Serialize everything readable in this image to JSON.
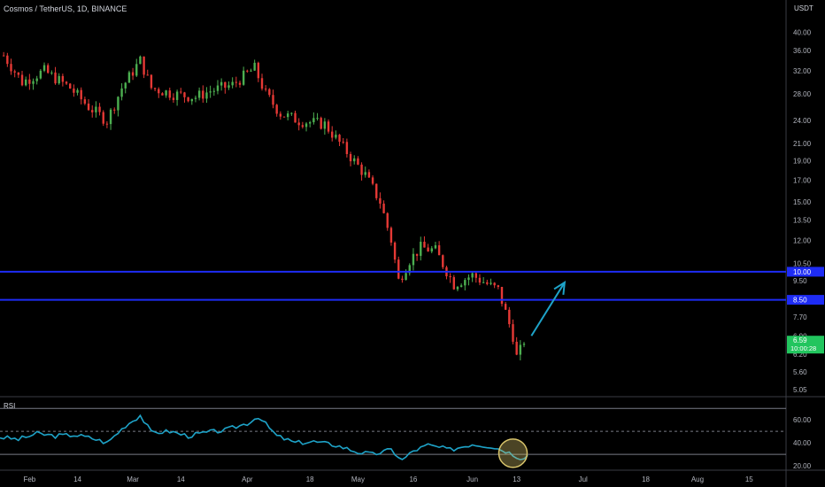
{
  "header": {
    "title": "Cosmos / TetherUS, 1D, BINANCE"
  },
  "price_axis": {
    "currency": "USDT",
    "labels": [
      "40.00",
      "36.00",
      "32.00",
      "28.00",
      "24.00",
      "21.00",
      "19.00",
      "17.00",
      "15.00",
      "13.50",
      "12.00",
      "10.50",
      "9.50",
      "7.70",
      "6.90",
      "6.20",
      "5.60",
      "5.05"
    ]
  },
  "time_axis": {
    "labels": [
      "Feb",
      "14",
      "Mar",
      "14",
      "Apr",
      "18",
      "May",
      "16",
      "Jun",
      "13",
      "Jul",
      "18",
      "Aug",
      "15"
    ]
  },
  "rsi_panel": {
    "label": "RSI",
    "axis_labels": [
      "60.00",
      "40.00",
      "20.00"
    ]
  },
  "badges": {
    "level_upper": "10.00",
    "level_lower": "8.50",
    "last_price": "6.59",
    "countdown": "10:00:28"
  },
  "colors": {
    "background": "#000000",
    "up": "#4caf50",
    "down": "#e53935",
    "level_line": "#1e2cf5",
    "rsi_line": "#1ea3c8",
    "arrow": "#1ea3c8",
    "circle_fill": "#d8c46b",
    "last_price_badge": "#22c55e",
    "axis_text": "#b2b5be"
  },
  "chart_data": [
    {
      "type": "candlestick",
      "title": "Cosmos / TetherUS, 1D, BINANCE",
      "y_scale": "log",
      "ylim": [
        4.9,
        44
      ],
      "y_unit": "USDT",
      "x_range": [
        "2022-01-24",
        "2022-08-25"
      ],
      "grid": false,
      "close_points": [
        [
          "2022-01-25",
          35
        ],
        [
          "2022-01-30",
          30
        ],
        [
          "2022-02-05",
          32
        ],
        [
          "2022-02-12",
          29
        ],
        [
          "2022-02-17",
          26
        ],
        [
          "2022-02-22",
          24
        ],
        [
          "2022-02-26",
          29
        ],
        [
          "2022-03-03",
          34
        ],
        [
          "2022-03-06",
          29
        ],
        [
          "2022-03-12",
          28
        ],
        [
          "2022-03-18",
          27.5
        ],
        [
          "2022-03-22",
          28.5
        ],
        [
          "2022-03-28",
          29.5
        ],
        [
          "2022-04-01",
          31.5
        ],
        [
          "2022-04-03",
          32.5
        ],
        [
          "2022-04-06",
          28
        ],
        [
          "2022-04-10",
          25
        ],
        [
          "2022-04-15",
          24
        ],
        [
          "2022-04-22",
          23.5
        ],
        [
          "2022-04-28",
          20
        ],
        [
          "2022-05-03",
          17.5
        ],
        [
          "2022-05-07",
          15
        ],
        [
          "2022-05-10",
          12
        ],
        [
          "2022-05-12",
          9.5
        ],
        [
          "2022-05-15",
          10.7
        ],
        [
          "2022-05-18",
          11.5
        ],
        [
          "2022-05-22",
          11.3
        ],
        [
          "2022-05-27",
          9.3
        ],
        [
          "2022-06-01",
          9.8
        ],
        [
          "2022-06-06",
          9.2
        ],
        [
          "2022-06-08",
          9.0
        ],
        [
          "2022-06-10",
          7.9
        ],
        [
          "2022-06-12",
          6.9
        ],
        [
          "2022-06-13",
          6.1
        ],
        [
          "2022-06-15",
          6.59
        ]
      ],
      "horizontal_levels": [
        10.0,
        8.5
      ],
      "last_price": 6.59,
      "annotation": {
        "type": "arrow",
        "from": [
          "2022-06-17",
          6.9
        ],
        "to": [
          "2022-06-26",
          9.4
        ]
      }
    },
    {
      "type": "line",
      "title": "RSI",
      "ylim": [
        17,
        74
      ],
      "bands": [
        70,
        50,
        30
      ],
      "series_points": [
        [
          "2022-01-24",
          45
        ],
        [
          "2022-01-29",
          43
        ],
        [
          "2022-02-03",
          48
        ],
        [
          "2022-02-08",
          46
        ],
        [
          "2022-02-13",
          47
        ],
        [
          "2022-02-18",
          44
        ],
        [
          "2022-02-22",
          40
        ],
        [
          "2022-02-27",
          55
        ],
        [
          "2022-03-03",
          64
        ],
        [
          "2022-03-06",
          49
        ],
        [
          "2022-03-11",
          50
        ],
        [
          "2022-03-16",
          46
        ],
        [
          "2022-03-21",
          49
        ],
        [
          "2022-03-26",
          51
        ],
        [
          "2022-04-01",
          57
        ],
        [
          "2022-04-04",
          63
        ],
        [
          "2022-04-09",
          46
        ],
        [
          "2022-04-14",
          40
        ],
        [
          "2022-04-19",
          41
        ],
        [
          "2022-04-25",
          38
        ],
        [
          "2022-05-01",
          32
        ],
        [
          "2022-05-05",
          30
        ],
        [
          "2022-05-10",
          34
        ],
        [
          "2022-05-13",
          25
        ],
        [
          "2022-05-16",
          33
        ],
        [
          "2022-05-20",
          38
        ],
        [
          "2022-05-26",
          34
        ],
        [
          "2022-06-01",
          39
        ],
        [
          "2022-06-06",
          37
        ],
        [
          "2022-06-10",
          33
        ],
        [
          "2022-06-14",
          27
        ],
        [
          "2022-06-16",
          29
        ]
      ],
      "highlight_circle_at": [
        "2022-06-12",
        31
      ]
    }
  ]
}
